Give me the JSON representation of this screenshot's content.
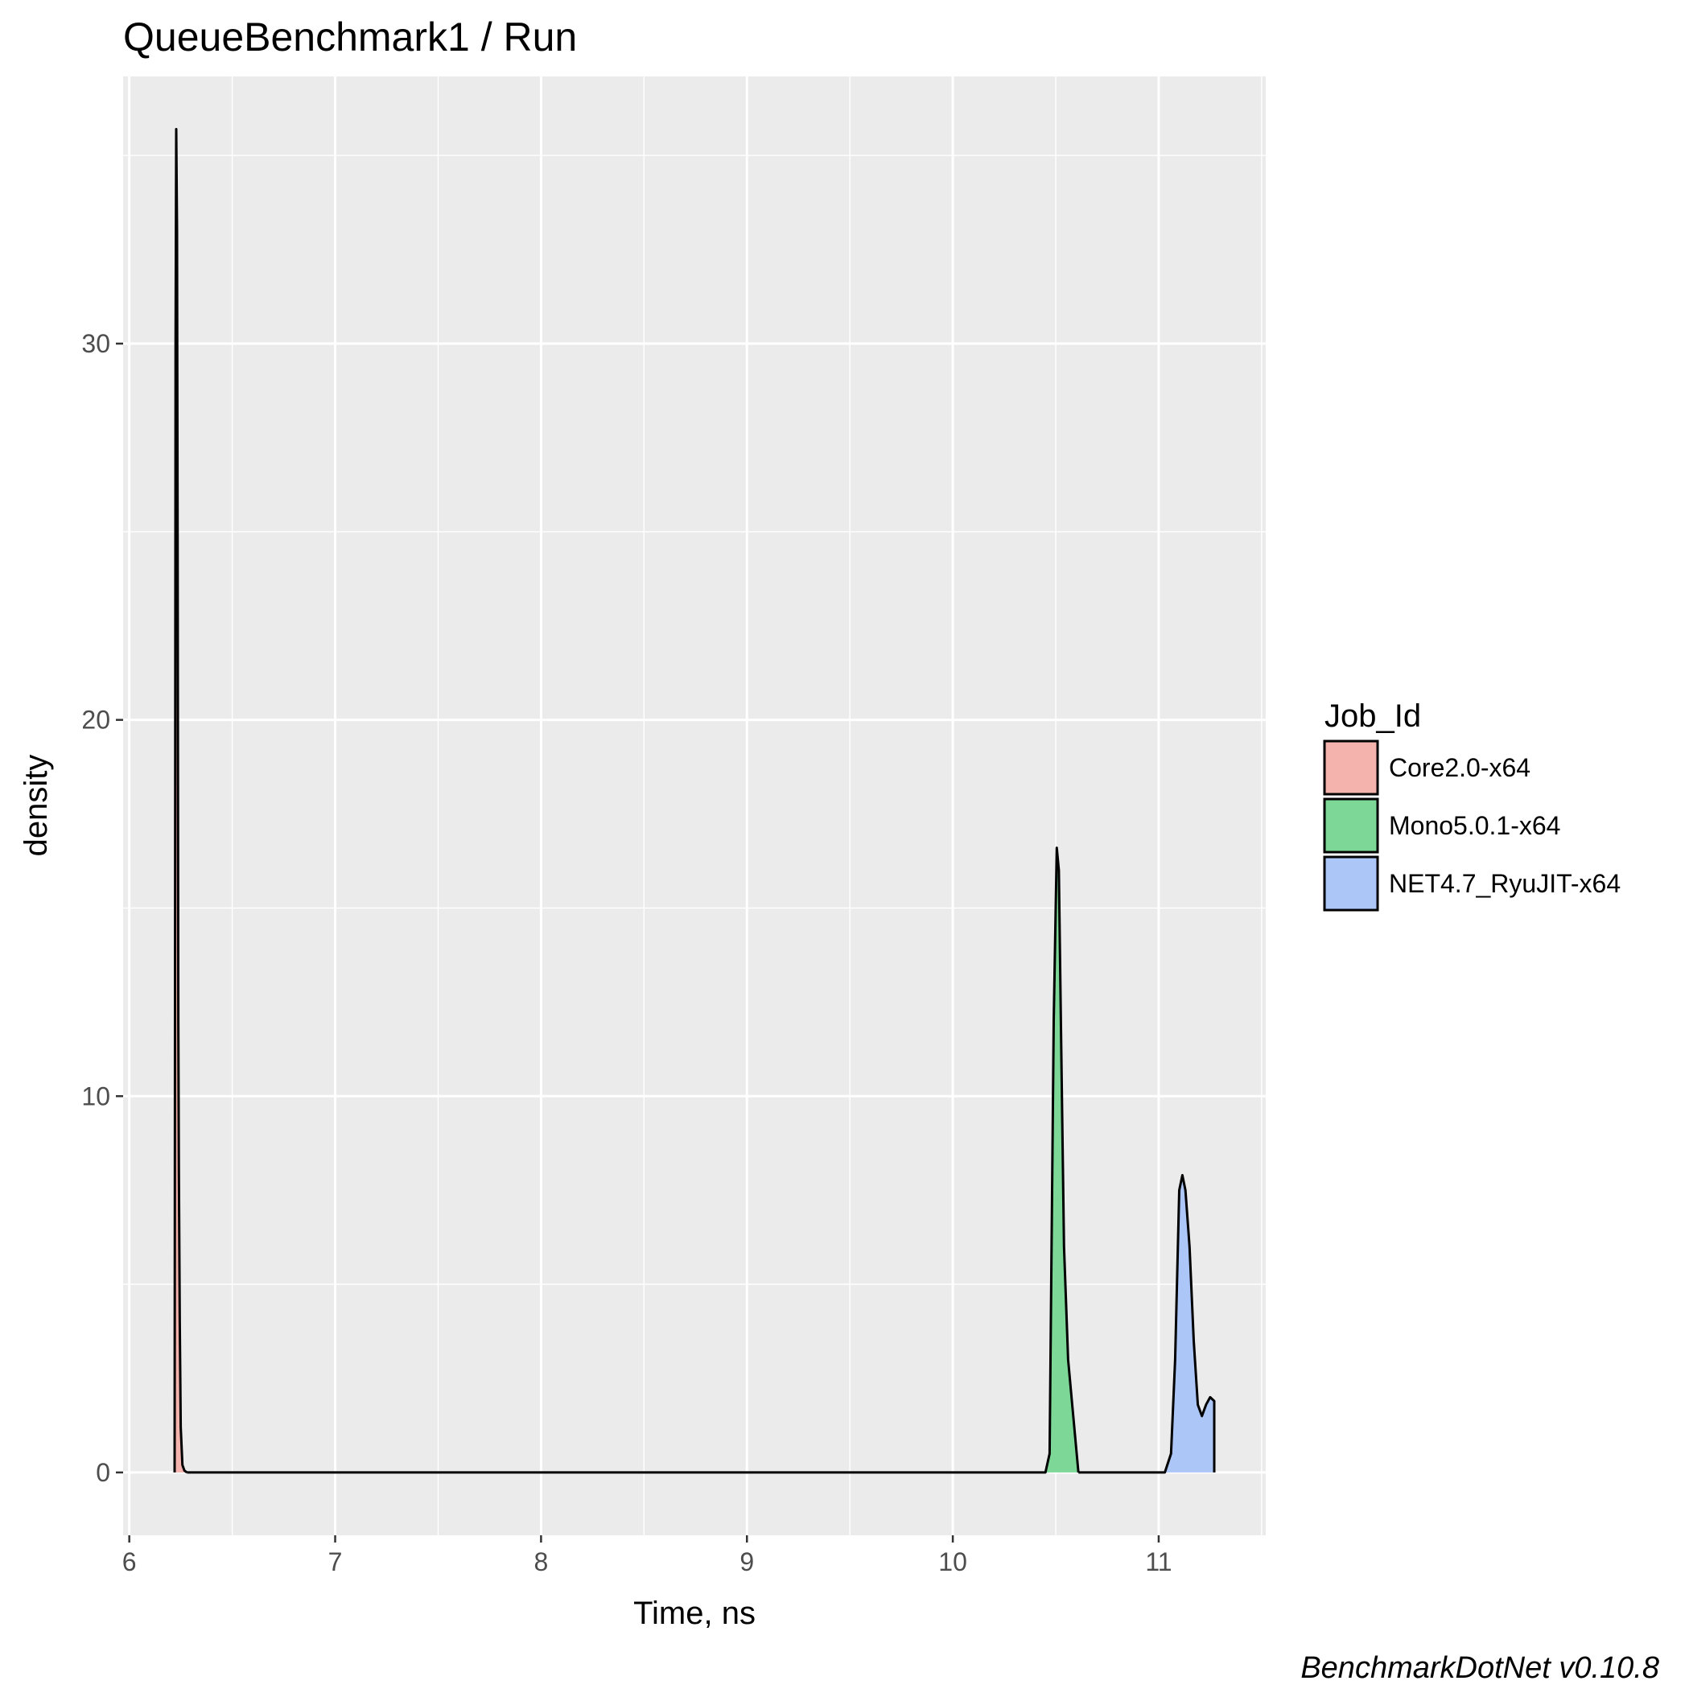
{
  "chart_data": {
    "type": "area",
    "title": "QueueBenchmark1 / Run",
    "xlabel": "Time, ns",
    "ylabel": "density",
    "caption": "BenchmarkDotNet v0.10.8",
    "xlim": [
      5.97,
      11.52
    ],
    "ylim": [
      -1.67,
      37.1
    ],
    "x_ticks": [
      6,
      7,
      8,
      9,
      10,
      11
    ],
    "x_tick_labels": [
      "6",
      "7",
      "8",
      "9",
      "10",
      "11"
    ],
    "y_ticks": [
      0,
      10,
      20,
      30
    ],
    "y_tick_labels": [
      "0",
      "10",
      "20",
      "30"
    ],
    "grid": true,
    "legend_position": "right",
    "legend": {
      "title": "Job_Id",
      "entries": [
        {
          "label": "Core2.0-x64",
          "color": "#f4b3ad"
        },
        {
          "label": "Mono5.0.1-x64",
          "color": "#7dd796"
        },
        {
          "label": "NET4.7_RyuJIT-x64",
          "color": "#abc6f7"
        }
      ]
    },
    "series": [
      {
        "color": "#f4b3ad",
        "x": [
          6.22,
          6.225,
          6.228,
          6.232,
          6.235,
          6.238,
          6.241,
          6.245,
          6.25,
          6.258,
          6.268,
          6.28
        ],
        "y": [
          0,
          30,
          35.7,
          33,
          24,
          12,
          8,
          4,
          1.2,
          0.2,
          0.05,
          0
        ]
      },
      {
        "color": "#7dd796",
        "x": [
          6.28,
          10.45,
          10.47,
          10.49,
          10.505,
          10.515,
          10.525,
          10.54,
          10.56,
          10.58,
          10.61
        ],
        "y": [
          0,
          0,
          0.5,
          12,
          16.6,
          16.0,
          12,
          6,
          3,
          1.8,
          0
        ]
      },
      {
        "color": "#abc6f7",
        "x": [
          10.61,
          11.03,
          11.06,
          11.08,
          11.1,
          11.115,
          11.13,
          11.15,
          11.17,
          11.19,
          11.21,
          11.23,
          11.25,
          11.27
        ],
        "y": [
          0,
          0,
          0.5,
          3,
          7.5,
          7.9,
          7.5,
          6,
          3.5,
          1.8,
          1.5,
          1.8,
          2.0,
          1.9
        ]
      }
    ]
  }
}
